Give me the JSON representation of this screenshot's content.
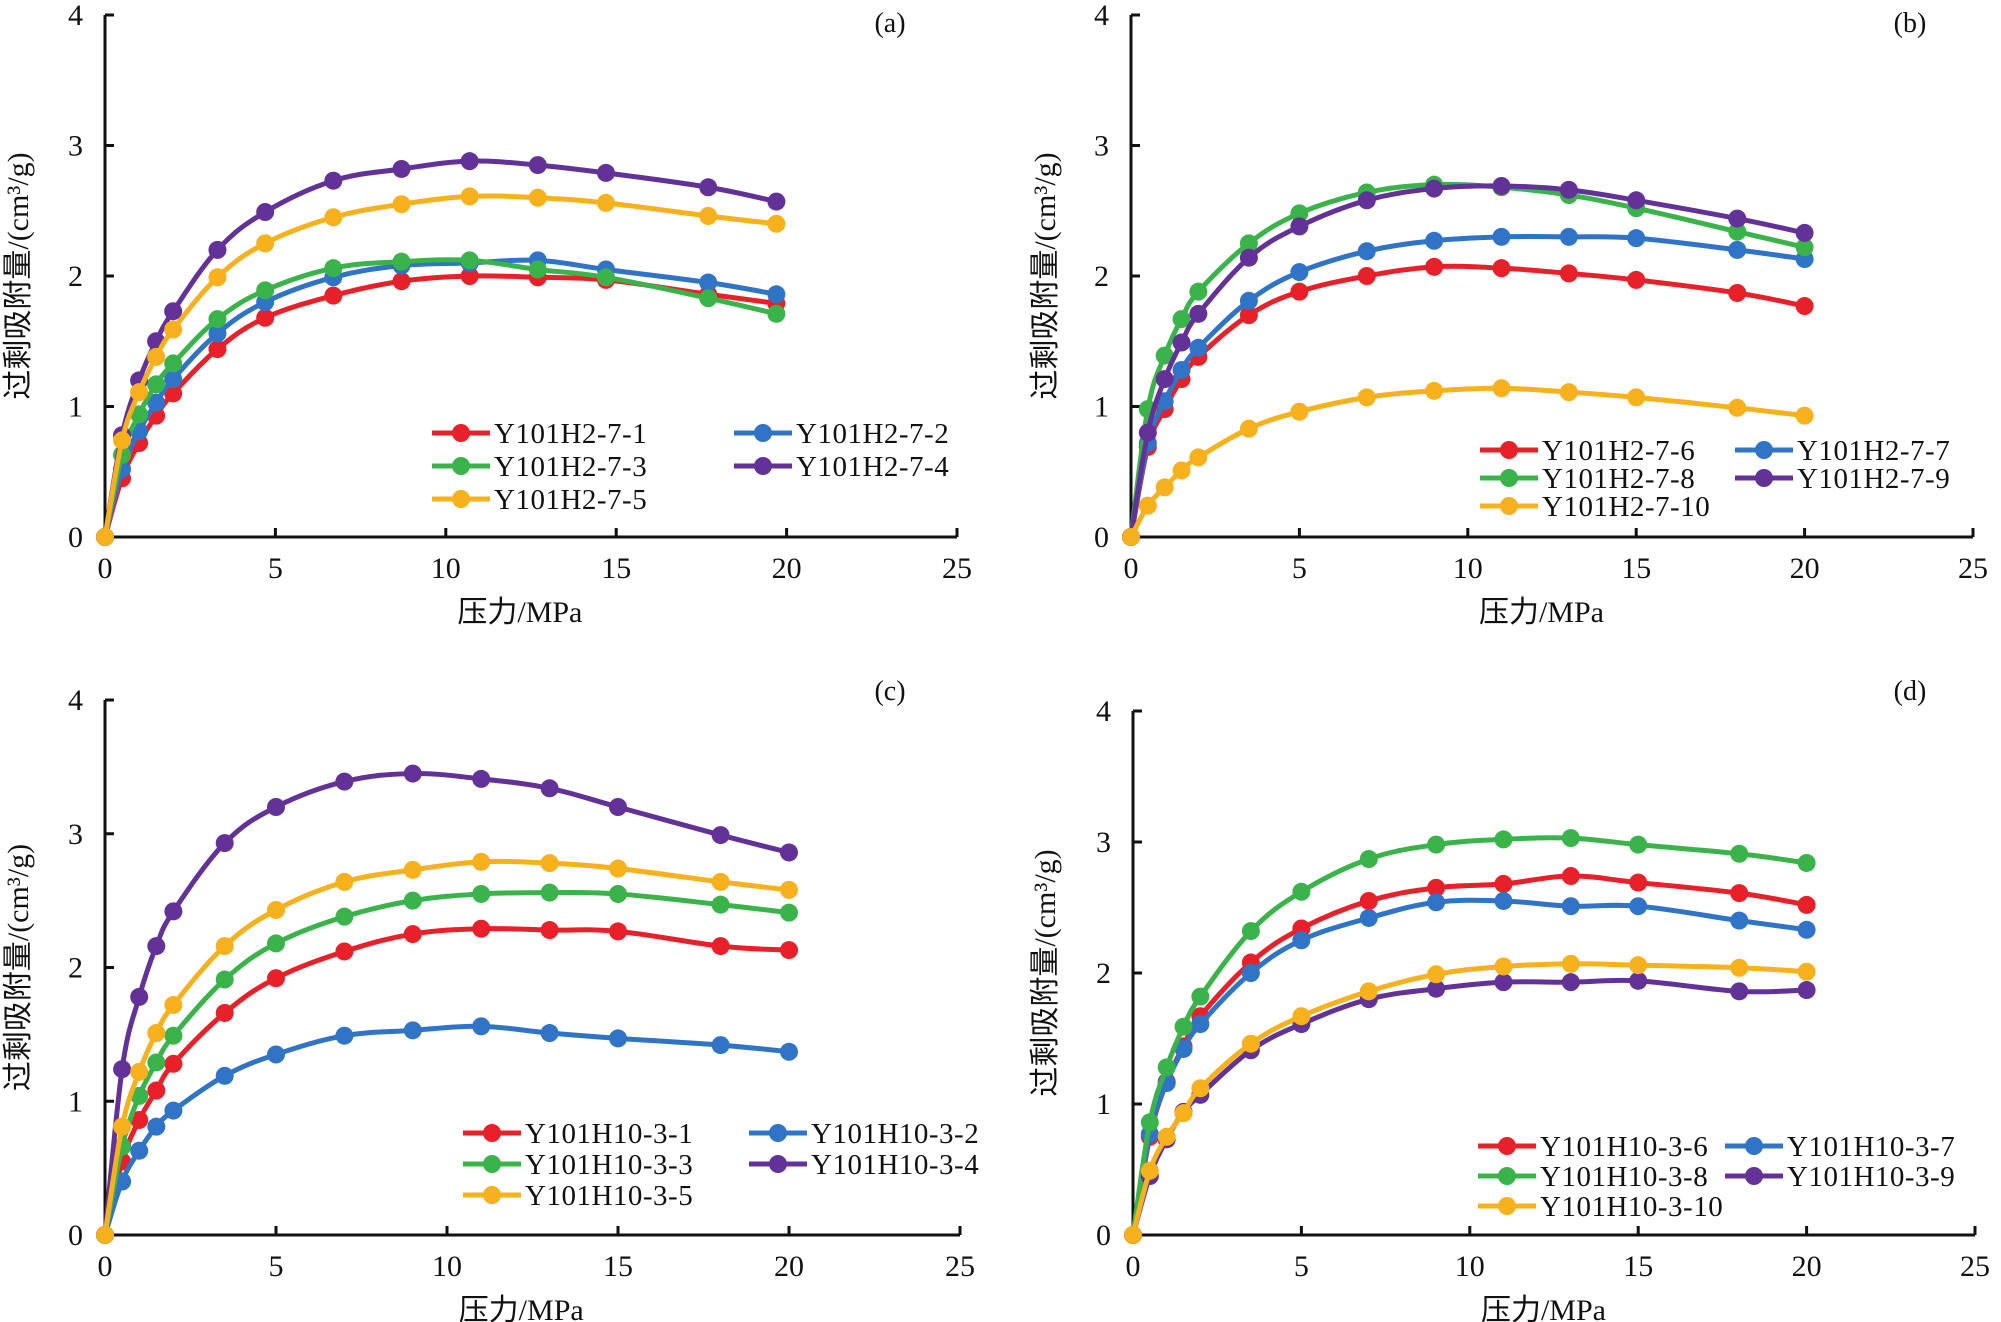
{
  "figure": {
    "panel_tags": [
      "(a)",
      "(b)",
      "(c)",
      "(d)"
    ]
  },
  "colors": {
    "red": "#E8202A",
    "blue": "#2F74C6",
    "green": "#3AB44A",
    "purple": "#633298",
    "yellow": "#F6B11C",
    "axis": "#111111"
  },
  "chart_data": [
    {
      "type": "line",
      "panel": "(a)",
      "title": "",
      "xlabel": "压力/MPa",
      "ylabel": "过剩吸附量/(cm³/g)",
      "xlim": [
        0,
        25
      ],
      "ylim": [
        0,
        4
      ],
      "xticks": [
        "0",
        "5",
        "10",
        "15",
        "20",
        "25"
      ],
      "yticks": [
        "0",
        "1",
        "2",
        "3",
        "4"
      ],
      "grid": false,
      "legend_position": "bottom-right",
      "x": [
        0,
        0.5,
        1,
        1.5,
        2,
        3.3,
        4.7,
        6.7,
        8.7,
        10.7,
        12.7,
        14.7,
        17.7,
        19.7
      ],
      "series": [
        {
          "name": "Y101H2-7-1",
          "color": "red",
          "values": [
            0,
            0.45,
            0.72,
            0.93,
            1.1,
            1.44,
            1.68,
            1.85,
            1.96,
            2.0,
            1.99,
            1.97,
            1.86,
            1.79
          ]
        },
        {
          "name": "Y101H2-7-2",
          "color": "blue",
          "values": [
            0,
            0.52,
            0.81,
            1.03,
            1.21,
            1.56,
            1.8,
            1.99,
            2.08,
            2.1,
            2.12,
            2.05,
            1.95,
            1.86
          ]
        },
        {
          "name": "Y101H2-7-3",
          "color": "green",
          "values": [
            0,
            0.63,
            0.94,
            1.17,
            1.33,
            1.67,
            1.89,
            2.06,
            2.11,
            2.12,
            2.05,
            1.99,
            1.83,
            1.71
          ]
        },
        {
          "name": "Y101H2-7-4",
          "color": "purple",
          "values": [
            0,
            0.78,
            1.2,
            1.5,
            1.73,
            2.2,
            2.49,
            2.73,
            2.82,
            2.88,
            2.85,
            2.79,
            2.68,
            2.57
          ]
        },
        {
          "name": "Y101H2-7-5",
          "color": "yellow",
          "values": [
            0,
            0.74,
            1.11,
            1.38,
            1.59,
            1.99,
            2.25,
            2.45,
            2.55,
            2.61,
            2.6,
            2.56,
            2.46,
            2.4
          ]
        }
      ]
    },
    {
      "type": "line",
      "panel": "(b)",
      "title": "",
      "xlabel": "压力/MPa",
      "ylabel": "过剩吸附量/(cm³/g)",
      "xlim": [
        0,
        25
      ],
      "ylim": [
        0,
        4
      ],
      "xticks": [
        "0",
        "5",
        "10",
        "15",
        "20",
        "25"
      ],
      "yticks": [
        "0",
        "1",
        "2",
        "3",
        "4"
      ],
      "grid": false,
      "legend_position": "bottom-right",
      "x": [
        0,
        0.5,
        1,
        1.5,
        2,
        3.5,
        5,
        7,
        9,
        11,
        13,
        15,
        18,
        20
      ],
      "series": [
        {
          "name": "Y101H2-7-6",
          "color": "red",
          "values": [
            0,
            0.69,
            0.98,
            1.21,
            1.38,
            1.7,
            1.88,
            2.0,
            2.07,
            2.06,
            2.02,
            1.97,
            1.87,
            1.77
          ]
        },
        {
          "name": "Y101H2-7-7",
          "color": "blue",
          "values": [
            0,
            0.72,
            1.04,
            1.28,
            1.45,
            1.81,
            2.03,
            2.19,
            2.27,
            2.3,
            2.3,
            2.29,
            2.2,
            2.13
          ]
        },
        {
          "name": "Y101H2-7-8",
          "color": "green",
          "values": [
            0,
            0.98,
            1.39,
            1.67,
            1.88,
            2.25,
            2.48,
            2.64,
            2.7,
            2.68,
            2.62,
            2.52,
            2.34,
            2.22
          ]
        },
        {
          "name": "Y101H2-7-9",
          "color": "purple",
          "values": [
            0,
            0.8,
            1.21,
            1.49,
            1.71,
            2.14,
            2.38,
            2.58,
            2.67,
            2.69,
            2.66,
            2.58,
            2.44,
            2.33
          ]
        },
        {
          "name": "Y101H2-7-10",
          "color": "yellow",
          "values": [
            0,
            0.24,
            0.38,
            0.51,
            0.61,
            0.83,
            0.96,
            1.07,
            1.12,
            1.14,
            1.11,
            1.07,
            0.99,
            0.93
          ]
        }
      ]
    },
    {
      "type": "line",
      "panel": "(c)",
      "title": "",
      "xlabel": "压力/MPa",
      "ylabel": "过剩吸附量/(cm³/g)",
      "xlim": [
        0,
        25
      ],
      "ylim": [
        0,
        4
      ],
      "xticks": [
        "0",
        "5",
        "10",
        "15",
        "20",
        "25"
      ],
      "yticks": [
        "0",
        "1",
        "2",
        "3",
        "4"
      ],
      "grid": false,
      "legend_position": "bottom-right",
      "x": [
        0,
        0.5,
        1,
        1.5,
        2,
        3.5,
        5,
        7,
        9,
        11,
        13,
        15,
        18,
        20
      ],
      "series": [
        {
          "name": "Y101H10-3-1",
          "color": "red",
          "values": [
            0,
            0.55,
            0.86,
            1.08,
            1.28,
            1.66,
            1.92,
            2.12,
            2.25,
            2.29,
            2.28,
            2.27,
            2.16,
            2.13
          ]
        },
        {
          "name": "Y101H10-3-2",
          "color": "blue",
          "values": [
            0,
            0.4,
            0.63,
            0.81,
            0.93,
            1.19,
            1.35,
            1.49,
            1.53,
            1.56,
            1.51,
            1.47,
            1.42,
            1.37
          ]
        },
        {
          "name": "Y101H10-3-3",
          "color": "green",
          "values": [
            0,
            0.66,
            1.04,
            1.29,
            1.49,
            1.91,
            2.18,
            2.38,
            2.5,
            2.55,
            2.56,
            2.55,
            2.47,
            2.41
          ]
        },
        {
          "name": "Y101H10-3-4",
          "color": "purple",
          "values": [
            0,
            1.24,
            1.78,
            2.16,
            2.42,
            2.93,
            3.2,
            3.39,
            3.45,
            3.41,
            3.34,
            3.2,
            2.99,
            2.86
          ]
        },
        {
          "name": "Y101H10-3-5",
          "color": "yellow",
          "values": [
            0,
            0.81,
            1.22,
            1.51,
            1.72,
            2.16,
            2.43,
            2.64,
            2.73,
            2.79,
            2.78,
            2.74,
            2.64,
            2.58
          ]
        }
      ]
    },
    {
      "type": "line",
      "panel": "(d)",
      "title": "",
      "xlabel": "压力/MPa",
      "ylabel": "过剩吸附量/(cm³/g)",
      "xlim": [
        0,
        25
      ],
      "ylim": [
        0,
        4
      ],
      "xticks": [
        "0",
        "5",
        "10",
        "15",
        "20",
        "25"
      ],
      "yticks": [
        "0",
        "1",
        "2",
        "3",
        "4"
      ],
      "grid": false,
      "legend_position": "bottom-right",
      "x": [
        0,
        0.5,
        1,
        1.5,
        2,
        3.5,
        5,
        7,
        9,
        11,
        13,
        15,
        18,
        20
      ],
      "series": [
        {
          "name": "Y101H10-3-6",
          "color": "red",
          "values": [
            0,
            0.75,
            1.17,
            1.44,
            1.67,
            2.08,
            2.34,
            2.55,
            2.65,
            2.68,
            2.74,
            2.69,
            2.61,
            2.52
          ]
        },
        {
          "name": "Y101H10-3-7",
          "color": "blue",
          "values": [
            0,
            0.77,
            1.16,
            1.42,
            1.61,
            2.0,
            2.25,
            2.42,
            2.54,
            2.55,
            2.51,
            2.51,
            2.4,
            2.33
          ]
        },
        {
          "name": "Y101H10-3-8",
          "color": "green",
          "values": [
            0,
            0.86,
            1.28,
            1.59,
            1.82,
            2.32,
            2.62,
            2.87,
            2.98,
            3.02,
            3.03,
            2.98,
            2.91,
            2.84
          ]
        },
        {
          "name": "Y101H10-3-9",
          "color": "purple",
          "values": [
            0,
            0.45,
            0.73,
            0.94,
            1.07,
            1.41,
            1.61,
            1.8,
            1.88,
            1.93,
            1.93,
            1.94,
            1.86,
            1.87
          ]
        },
        {
          "name": "Y101H10-3-10",
          "color": "yellow",
          "values": [
            0,
            0.49,
            0.75,
            0.93,
            1.12,
            1.46,
            1.67,
            1.86,
            1.99,
            2.05,
            2.07,
            2.06,
            2.04,
            2.01
          ]
        }
      ]
    }
  ]
}
